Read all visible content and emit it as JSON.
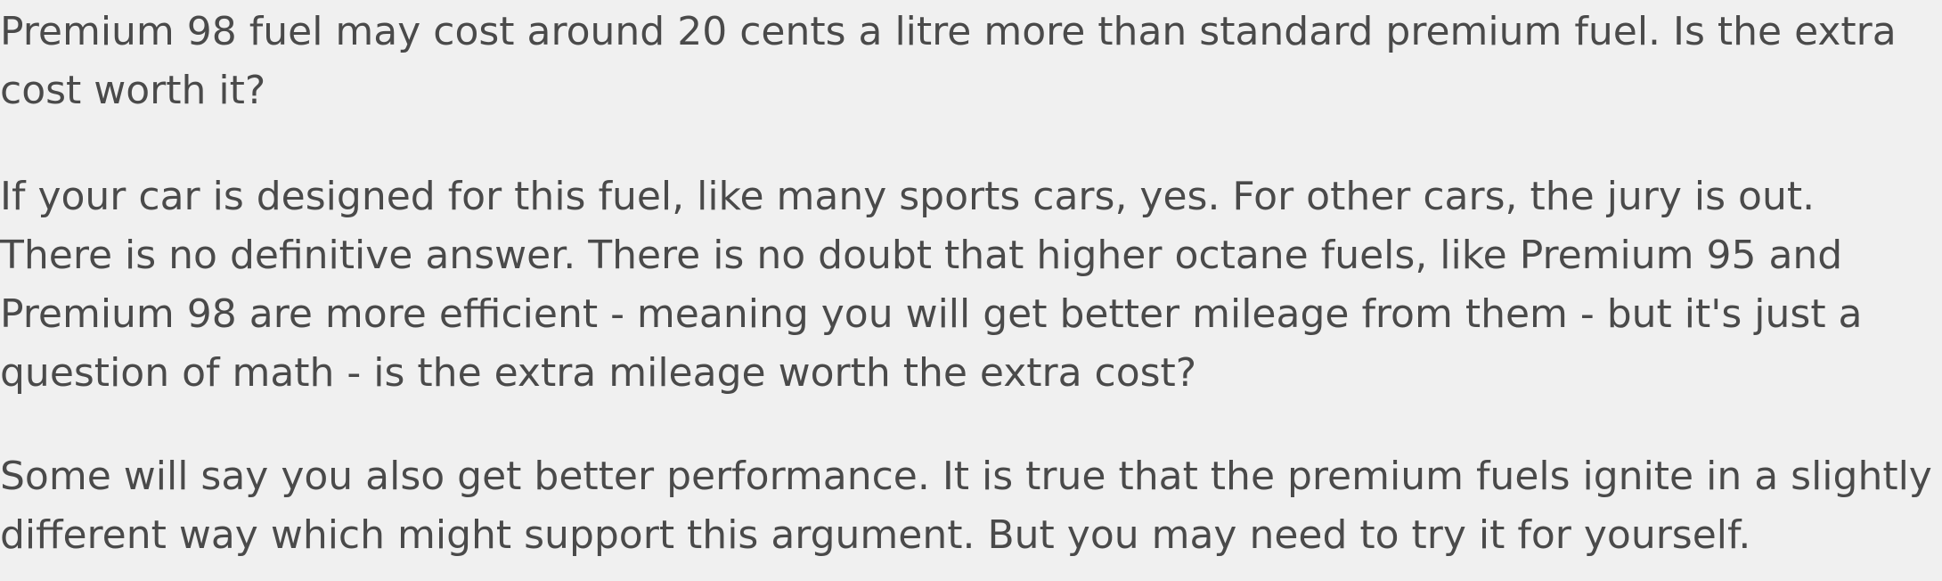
{
  "article": {
    "paragraphs": [
      "Premium 98 fuel may cost around 20 cents a litre more than standard premium fuel. Is the extra cost worth it?",
      "If your car is designed for this fuel, like many sports cars, yes. For other cars, the jury is out. There is no definitive answer. There is no doubt that higher octane fuels, like Premium 95 and Premium 98 are more efficient - meaning you will get better mileage from them - but it's just a question of math - is the extra mileage worth the extra cost?",
      "Some will say you also get better performance. It is true that the premium fuels ignite in a slightly different way which might support this argument. But you may need to try it for yourself."
    ]
  },
  "colors": {
    "background": "#f0f0f0",
    "text": "#4a4a4a"
  }
}
